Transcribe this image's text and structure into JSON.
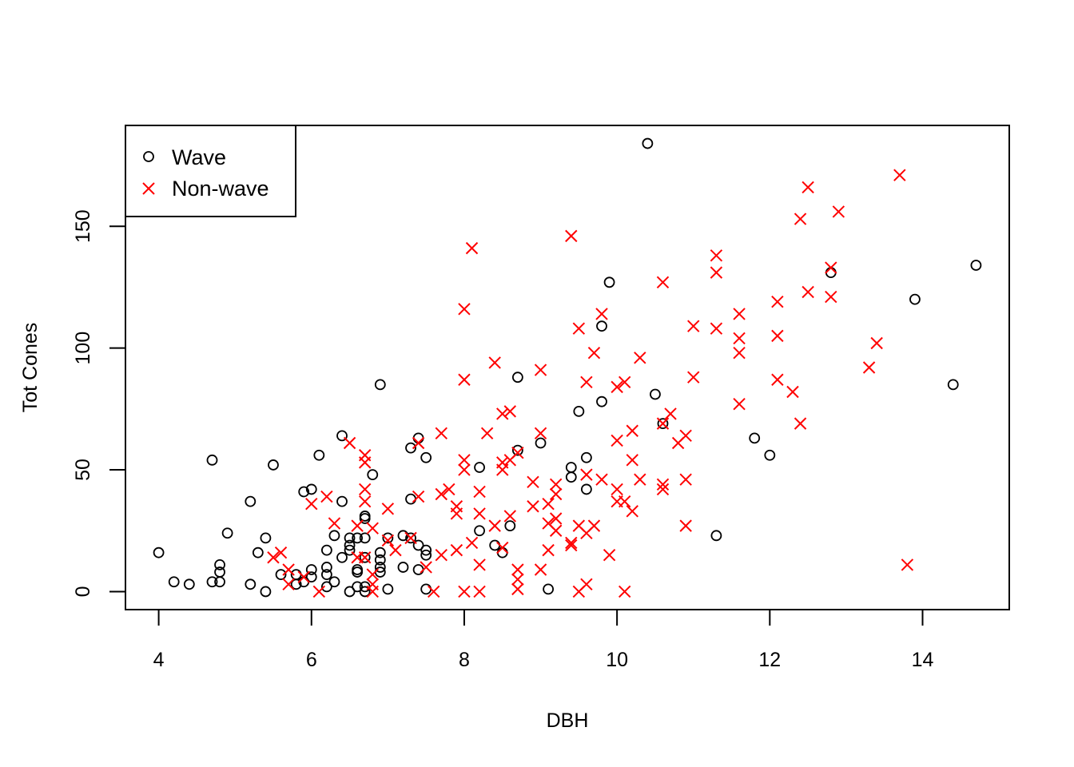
{
  "chart_data": {
    "type": "scatter",
    "title": "",
    "xlabel": "DBH",
    "ylabel": "Tot Cones",
    "xlim": [
      3.565,
      15.135
    ],
    "ylim": [
      -7.4,
      191.4
    ],
    "xticks": [
      4,
      6,
      8,
      10,
      12,
      14
    ],
    "yticks": [
      0,
      50,
      100,
      150
    ],
    "grid": false,
    "legend_position": "top-left",
    "series": [
      {
        "name": "Wave",
        "color": "#000000",
        "marker": "circle",
        "points": [
          [
            4.0,
            16
          ],
          [
            4.2,
            4
          ],
          [
            4.4,
            3
          ],
          [
            4.7,
            4
          ],
          [
            4.7,
            54
          ],
          [
            4.8,
            4
          ],
          [
            4.8,
            8
          ],
          [
            4.8,
            11
          ],
          [
            4.9,
            24
          ],
          [
            5.2,
            3
          ],
          [
            5.2,
            37
          ],
          [
            5.3,
            16
          ],
          [
            5.4,
            0
          ],
          [
            5.4,
            22
          ],
          [
            5.5,
            52
          ],
          [
            5.6,
            7
          ],
          [
            5.8,
            3
          ],
          [
            5.8,
            7
          ],
          [
            5.9,
            4
          ],
          [
            5.9,
            41
          ],
          [
            6.0,
            6
          ],
          [
            6.0,
            9
          ],
          [
            6.0,
            42
          ],
          [
            6.1,
            56
          ],
          [
            6.2,
            2
          ],
          [
            6.2,
            7
          ],
          [
            6.2,
            10
          ],
          [
            6.2,
            17
          ],
          [
            6.3,
            4
          ],
          [
            6.3,
            23
          ],
          [
            6.4,
            14
          ],
          [
            6.4,
            37
          ],
          [
            6.4,
            64
          ],
          [
            6.5,
            0
          ],
          [
            6.5,
            17
          ],
          [
            6.5,
            19
          ],
          [
            6.5,
            22
          ],
          [
            6.6,
            2
          ],
          [
            6.6,
            8
          ],
          [
            6.6,
            9
          ],
          [
            6.6,
            22
          ],
          [
            6.7,
            0
          ],
          [
            6.7,
            2
          ],
          [
            6.7,
            14
          ],
          [
            6.7,
            22
          ],
          [
            6.7,
            30
          ],
          [
            6.7,
            31
          ],
          [
            6.8,
            48
          ],
          [
            6.9,
            8
          ],
          [
            6.9,
            10
          ],
          [
            6.9,
            13
          ],
          [
            6.9,
            16
          ],
          [
            6.9,
            85
          ],
          [
            7.0,
            1
          ],
          [
            7.0,
            22
          ],
          [
            7.2,
            10
          ],
          [
            7.2,
            23
          ],
          [
            7.3,
            22
          ],
          [
            7.3,
            38
          ],
          [
            7.3,
            59
          ],
          [
            7.4,
            9
          ],
          [
            7.4,
            19
          ],
          [
            7.4,
            63
          ],
          [
            7.5,
            1
          ],
          [
            7.5,
            15
          ],
          [
            7.5,
            17
          ],
          [
            7.5,
            55
          ],
          [
            8.2,
            25
          ],
          [
            8.2,
            51
          ],
          [
            8.4,
            19
          ],
          [
            8.5,
            16
          ],
          [
            8.6,
            27
          ],
          [
            8.7,
            58
          ],
          [
            8.7,
            88
          ],
          [
            9.0,
            61
          ],
          [
            9.1,
            1
          ],
          [
            9.4,
            47
          ],
          [
            9.4,
            51
          ],
          [
            9.5,
            74
          ],
          [
            9.6,
            42
          ],
          [
            9.6,
            55
          ],
          [
            9.8,
            78
          ],
          [
            9.8,
            109
          ],
          [
            9.9,
            127
          ],
          [
            10.4,
            184
          ],
          [
            10.5,
            81
          ],
          [
            10.6,
            69
          ],
          [
            11.3,
            23
          ],
          [
            11.8,
            63
          ],
          [
            12.0,
            56
          ],
          [
            12.8,
            131
          ],
          [
            13.9,
            120
          ],
          [
            14.4,
            85
          ],
          [
            14.7,
            134
          ]
        ]
      },
      {
        "name": "Non-wave",
        "color": "#ff0000",
        "marker": "x",
        "points": [
          [
            5.5,
            14
          ],
          [
            5.6,
            16
          ],
          [
            5.7,
            3
          ],
          [
            5.7,
            9
          ],
          [
            5.9,
            6
          ],
          [
            6.0,
            36
          ],
          [
            6.1,
            0
          ],
          [
            6.2,
            39
          ],
          [
            6.3,
            28
          ],
          [
            6.5,
            61
          ],
          [
            6.6,
            14
          ],
          [
            6.6,
            27
          ],
          [
            6.7,
            14
          ],
          [
            6.7,
            37
          ],
          [
            6.7,
            42
          ],
          [
            6.7,
            53
          ],
          [
            6.7,
            56
          ],
          [
            6.8,
            0
          ],
          [
            6.8,
            3
          ],
          [
            6.8,
            7
          ],
          [
            6.8,
            26
          ],
          [
            7.0,
            21
          ],
          [
            7.0,
            34
          ],
          [
            7.1,
            17
          ],
          [
            7.3,
            22
          ],
          [
            7.4,
            39
          ],
          [
            7.4,
            61
          ],
          [
            7.5,
            10
          ],
          [
            7.6,
            0
          ],
          [
            7.7,
            15
          ],
          [
            7.7,
            40
          ],
          [
            7.7,
            65
          ],
          [
            7.8,
            42
          ],
          [
            7.9,
            17
          ],
          [
            7.9,
            32
          ],
          [
            7.9,
            35
          ],
          [
            8.0,
            0
          ],
          [
            8.0,
            50
          ],
          [
            8.0,
            54
          ],
          [
            8.0,
            87
          ],
          [
            8.0,
            116
          ],
          [
            8.1,
            20
          ],
          [
            8.1,
            141
          ],
          [
            8.2,
            0
          ],
          [
            8.2,
            11
          ],
          [
            8.2,
            32
          ],
          [
            8.2,
            41
          ],
          [
            8.3,
            65
          ],
          [
            8.4,
            27
          ],
          [
            8.4,
            94
          ],
          [
            8.5,
            18
          ],
          [
            8.5,
            50
          ],
          [
            8.5,
            53
          ],
          [
            8.5,
            73
          ],
          [
            8.6,
            31
          ],
          [
            8.6,
            54
          ],
          [
            8.6,
            74
          ],
          [
            8.7,
            1
          ],
          [
            8.7,
            5
          ],
          [
            8.7,
            9
          ],
          [
            8.7,
            57
          ],
          [
            8.9,
            35
          ],
          [
            8.9,
            45
          ],
          [
            9.0,
            9
          ],
          [
            9.0,
            65
          ],
          [
            9.0,
            91
          ],
          [
            9.1,
            17
          ],
          [
            9.1,
            28
          ],
          [
            9.1,
            36
          ],
          [
            9.2,
            25
          ],
          [
            9.2,
            30
          ],
          [
            9.2,
            40
          ],
          [
            9.2,
            44
          ],
          [
            9.4,
            19
          ],
          [
            9.4,
            20
          ],
          [
            9.4,
            146
          ],
          [
            9.5,
            0
          ],
          [
            9.5,
            27
          ],
          [
            9.5,
            108
          ],
          [
            9.6,
            3
          ],
          [
            9.6,
            24
          ],
          [
            9.6,
            48
          ],
          [
            9.6,
            86
          ],
          [
            9.7,
            27
          ],
          [
            9.7,
            98
          ],
          [
            9.8,
            46
          ],
          [
            9.8,
            114
          ],
          [
            9.9,
            15
          ],
          [
            10.0,
            37
          ],
          [
            10.0,
            42
          ],
          [
            10.0,
            62
          ],
          [
            10.0,
            84
          ],
          [
            10.1,
            0
          ],
          [
            10.1,
            37
          ],
          [
            10.1,
            86
          ],
          [
            10.2,
            33
          ],
          [
            10.2,
            54
          ],
          [
            10.2,
            66
          ],
          [
            10.3,
            46
          ],
          [
            10.3,
            96
          ],
          [
            10.6,
            42
          ],
          [
            10.6,
            44
          ],
          [
            10.6,
            69
          ],
          [
            10.6,
            127
          ],
          [
            10.7,
            73
          ],
          [
            10.8,
            61
          ],
          [
            10.9,
            27
          ],
          [
            10.9,
            46
          ],
          [
            10.9,
            64
          ],
          [
            11.0,
            88
          ],
          [
            11.0,
            109
          ],
          [
            11.3,
            108
          ],
          [
            11.3,
            131
          ],
          [
            11.3,
            138
          ],
          [
            11.6,
            77
          ],
          [
            11.6,
            98
          ],
          [
            11.6,
            104
          ],
          [
            11.6,
            114
          ],
          [
            12.1,
            87
          ],
          [
            12.1,
            105
          ],
          [
            12.1,
            119
          ],
          [
            12.3,
            82
          ],
          [
            12.4,
            69
          ],
          [
            12.4,
            153
          ],
          [
            12.5,
            123
          ],
          [
            12.5,
            166
          ],
          [
            12.8,
            121
          ],
          [
            12.8,
            133
          ],
          [
            12.9,
            156
          ],
          [
            13.3,
            92
          ],
          [
            13.4,
            102
          ],
          [
            13.7,
            171
          ],
          [
            13.8,
            11
          ]
        ]
      }
    ]
  }
}
